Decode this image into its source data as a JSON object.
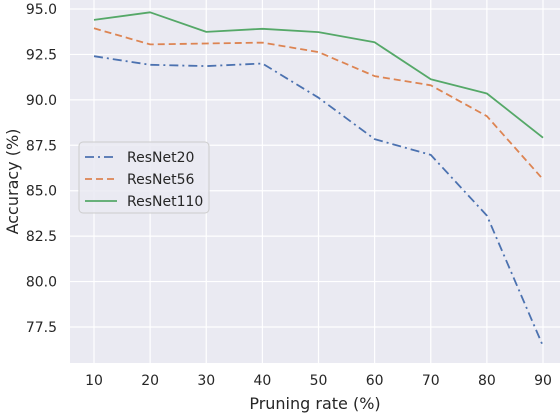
{
  "chart_data": {
    "type": "line",
    "xlabel": "Pruning rate (%)",
    "ylabel": "Accuracy (%)",
    "x": [
      10,
      20,
      30,
      40,
      50,
      60,
      70,
      80,
      90
    ],
    "xticks": [
      "10",
      "20",
      "30",
      "40",
      "50",
      "60",
      "70",
      "80",
      "90"
    ],
    "yticks": [
      "77.5",
      "80.0",
      "82.5",
      "85.0",
      "87.5",
      "90.0",
      "92.5",
      "95.0"
    ],
    "xlim": [
      6,
      90
    ],
    "ylim": [
      75.6,
      95.0
    ],
    "grid": true,
    "legend_position": "center-left",
    "series": [
      {
        "name": "ResNet20",
        "values": [
          92.4,
          91.93,
          91.86,
          92.0,
          90.12,
          87.84,
          86.97,
          83.63,
          76.45
        ],
        "color": "#4c72b0",
        "style": "dashdot"
      },
      {
        "name": "ResNet56",
        "values": [
          93.94,
          93.05,
          93.1,
          93.15,
          92.63,
          91.31,
          90.8,
          89.1,
          85.63
        ],
        "color": "#dd8452",
        "style": "dashed"
      },
      {
        "name": "ResNet110",
        "values": [
          94.4,
          94.82,
          93.74,
          93.91,
          93.73,
          93.17,
          91.13,
          90.35,
          87.92
        ],
        "color": "#55a868",
        "style": "solid"
      }
    ],
    "background": "#eaeaf2",
    "gridcolor": "#ffffff"
  }
}
